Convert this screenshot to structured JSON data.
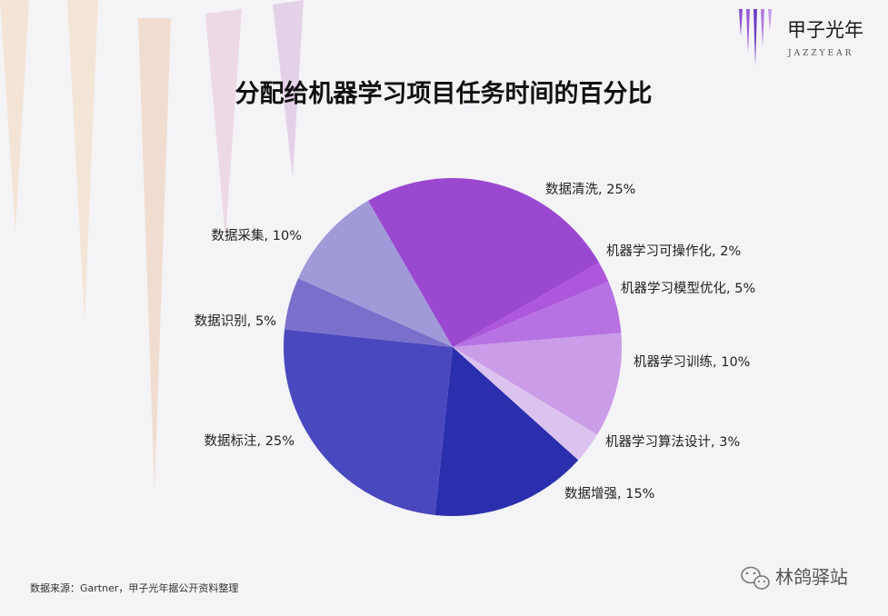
{
  "brand": {
    "name_cn": "甲子光年",
    "name_en": "JAZZYEAR"
  },
  "chart_data": {
    "type": "pie",
    "title": "分配给机器学习项目任务时间的百分比",
    "unit": "%",
    "slices": [
      {
        "label": "数据清洗",
        "value": 25,
        "display": "数据清洗, 25%",
        "color": "#9a48d0"
      },
      {
        "label": "机器学习可操作化",
        "value": 2,
        "display": "机器学习可操作化, 2%",
        "color": "#ad58dc"
      },
      {
        "label": "机器学习模型优化",
        "value": 5,
        "display": "机器学习模型优化, 5%",
        "color": "#b672e2"
      },
      {
        "label": "机器学习训练",
        "value": 10,
        "display": "机器学习训练, 10%",
        "color": "#cb9ce8"
      },
      {
        "label": "机器学习算法设计",
        "value": 3,
        "display": "机器学习算法设计, 3%",
        "color": "#dcc3ef"
      },
      {
        "label": "数据增强",
        "value": 15,
        "display": "数据增强, 15%",
        "color": "#2a2fae"
      },
      {
        "label": "数据标注",
        "value": 25,
        "display": "数据标注, 25%",
        "color": "#4a48be"
      },
      {
        "label": "数据识别",
        "value": 5,
        "display": "数据识别, 5%",
        "color": "#7a70cc"
      },
      {
        "label": "数据采集",
        "value": 10,
        "display": "数据采集, 10%",
        "color": "#a19ad9"
      }
    ],
    "legend": "none"
  },
  "source": "数据来源：Gartner，甲子光年据公开资料整理",
  "watermark": {
    "text": "林鸽驿站"
  }
}
